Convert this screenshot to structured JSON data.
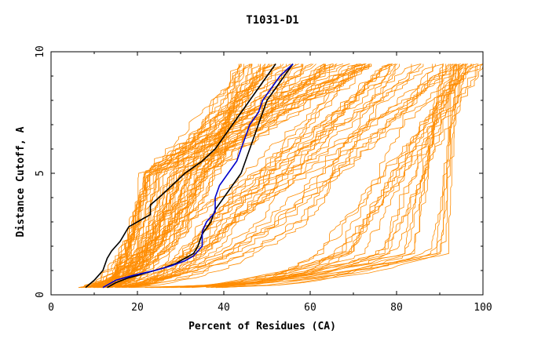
{
  "chart_data": {
    "type": "line",
    "title": "T1031-D1",
    "xlabel": "Percent of Residues (CA)",
    "ylabel": "Distance Cutoff, A",
    "xlim": [
      0,
      100
    ],
    "ylim": [
      0,
      10
    ],
    "x_ticks": [
      "0",
      "20",
      "40",
      "60",
      "80",
      "100"
    ],
    "y_ticks": [
      "0",
      "5",
      "10"
    ],
    "grid": false,
    "legend": "none",
    "colors": {
      "background_models": "#ff8c00",
      "highlight_black": "#000000",
      "highlight_blue": "#0000cc"
    },
    "series": [
      {
        "color": "#000000",
        "points": [
          [
            8,
            0.3
          ],
          [
            10,
            0.6
          ],
          [
            12,
            1.0
          ],
          [
            13,
            1.5
          ],
          [
            14,
            1.8
          ],
          [
            16,
            2.2
          ],
          [
            18,
            2.8
          ],
          [
            20,
            3.0
          ],
          [
            23,
            3.3
          ],
          [
            23,
            3.7
          ],
          [
            25,
            4.0
          ],
          [
            28,
            4.5
          ],
          [
            31,
            5.0
          ],
          [
            35,
            5.5
          ],
          [
            38,
            6.0
          ],
          [
            40,
            6.5
          ],
          [
            42,
            7.0
          ],
          [
            44,
            7.5
          ],
          [
            46,
            8.0
          ],
          [
            48,
            8.5
          ],
          [
            50,
            9.0
          ],
          [
            52,
            9.5
          ]
        ]
      },
      {
        "color": "#000000",
        "points": [
          [
            13,
            0.3
          ],
          [
            15,
            0.5
          ],
          [
            18,
            0.7
          ],
          [
            22,
            0.9
          ],
          [
            26,
            1.1
          ],
          [
            29,
            1.3
          ],
          [
            31,
            1.5
          ],
          [
            33,
            1.7
          ],
          [
            34,
            2.0
          ],
          [
            35,
            2.5
          ],
          [
            37,
            3.0
          ],
          [
            38,
            3.5
          ],
          [
            40,
            4.0
          ],
          [
            42,
            4.5
          ],
          [
            44,
            5.0
          ],
          [
            45,
            5.5
          ],
          [
            46,
            6.0
          ],
          [
            47,
            6.5
          ],
          [
            48,
            7.0
          ],
          [
            49,
            7.5
          ],
          [
            50,
            8.0
          ],
          [
            52,
            8.5
          ],
          [
            54,
            9.0
          ],
          [
            56,
            9.5
          ]
        ]
      },
      {
        "color": "#0000cc",
        "points": [
          [
            12,
            0.3
          ],
          [
            15,
            0.6
          ],
          [
            19,
            0.8
          ],
          [
            24,
            1.0
          ],
          [
            28,
            1.2
          ],
          [
            31,
            1.4
          ],
          [
            33,
            1.6
          ],
          [
            35,
            2.0
          ],
          [
            35,
            2.6
          ],
          [
            36,
            3.0
          ],
          [
            38,
            3.4
          ],
          [
            38,
            4.0
          ],
          [
            39,
            4.5
          ],
          [
            41,
            5.0
          ],
          [
            43,
            5.5
          ],
          [
            44,
            6.0
          ],
          [
            45,
            6.5
          ],
          [
            46,
            7.0
          ],
          [
            48,
            7.5
          ],
          [
            49,
            8.0
          ],
          [
            51,
            8.5
          ],
          [
            53,
            9.0
          ],
          [
            56,
            9.5
          ]
        ]
      }
    ]
  }
}
